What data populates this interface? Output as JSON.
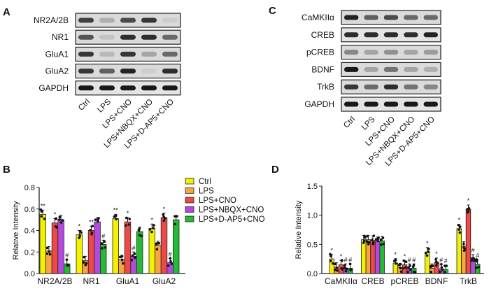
{
  "panels": {
    "a": "A",
    "b": "B",
    "c": "C",
    "d": "D"
  },
  "groups": [
    "Ctrl",
    "LPS",
    "LPS+CNO",
    "LPS+NBQX+CNO",
    "LPS+D-AP5+CNO"
  ],
  "colors": {
    "Ctrl": "#f2f200",
    "LPS": "#f6a444",
    "LPS+CNO": "#ee4848",
    "LPS+NBQX+CNO": "#b24ae0",
    "LPS+D-AP5+CNO": "#22bb33"
  },
  "blots_a": [
    "NR2A/2B",
    "NR1",
    "GluA1",
    "GluA2",
    "GAPDH"
  ],
  "blots_c": [
    "CaMKIIα",
    "CREB",
    "pCREB",
    "BDNF",
    "TrkB",
    "GAPDH"
  ],
  "chart_data": [
    {
      "type": "bar",
      "panel": "B",
      "ylabel": "Relative Intensity",
      "ylim": [
        0,
        0.8
      ],
      "yticks": [
        "0.0",
        "0.2",
        "0.4",
        "0.6",
        "0.8"
      ],
      "categories": [
        "NR2A/2B",
        "NR1",
        "GluA1",
        "GluA2"
      ],
      "legend": "right",
      "series": [
        {
          "name": "Ctrl",
          "values": [
            0.55,
            0.36,
            0.51,
            0.42
          ],
          "sig": [
            "**",
            "*",
            "**",
            "*"
          ]
        },
        {
          "name": "LPS",
          "values": [
            0.21,
            0.12,
            0.13,
            0.26
          ],
          "sig": [
            "",
            "",
            "",
            ""
          ]
        },
        {
          "name": "LPS+CNO",
          "values": [
            0.47,
            0.4,
            0.48,
            0.52
          ],
          "sig": [
            "*",
            "**",
            "*",
            "*"
          ]
        },
        {
          "name": "LPS+NBQX+CNO",
          "values": [
            0.5,
            0.48,
            0.16,
            0.1
          ],
          "sig": [
            "",
            "",
            "#",
            "#"
          ]
        },
        {
          "name": "LPS+D-AP5+CNO",
          "values": [
            0.09,
            0.27,
            0.39,
            0.5
          ],
          "sig": [
            "#",
            "#",
            "",
            ""
          ]
        }
      ]
    },
    {
      "type": "bar",
      "panel": "D",
      "ylabel": "Relative Intensity",
      "ylim": [
        0,
        1.5
      ],
      "yticks": [
        "0.0",
        "0.5",
        "1.0",
        "1.5"
      ],
      "categories": [
        "CaMKIIα",
        "CREB",
        "pCREB",
        "BDNF",
        "TrkB"
      ],
      "series": [
        {
          "name": "Ctrl",
          "values": [
            0.25,
            0.58,
            0.18,
            0.37,
            0.77
          ],
          "sig": [
            "*",
            "",
            "*",
            "*",
            "*"
          ]
        },
        {
          "name": "LPS",
          "values": [
            0.11,
            0.58,
            0.1,
            0.09,
            0.47
          ],
          "sig": [
            "",
            "",
            "",
            "",
            ""
          ]
        },
        {
          "name": "LPS+CNO",
          "values": [
            0.15,
            0.57,
            0.15,
            0.19,
            1.1
          ],
          "sig": [
            "*",
            "",
            "*",
            "*",
            "*"
          ]
        },
        {
          "name": "LPS+NBQX+CNO",
          "values": [
            0.09,
            0.55,
            0.09,
            0.08,
            0.25
          ],
          "sig": [
            "#",
            "",
            "#",
            "#",
            "#"
          ]
        },
        {
          "name": "LPS+D-AP5+CNO",
          "values": [
            0.09,
            0.56,
            0.09,
            0.07,
            0.16
          ],
          "sig": [
            "#",
            "",
            "#",
            "#",
            "#"
          ]
        }
      ]
    }
  ]
}
